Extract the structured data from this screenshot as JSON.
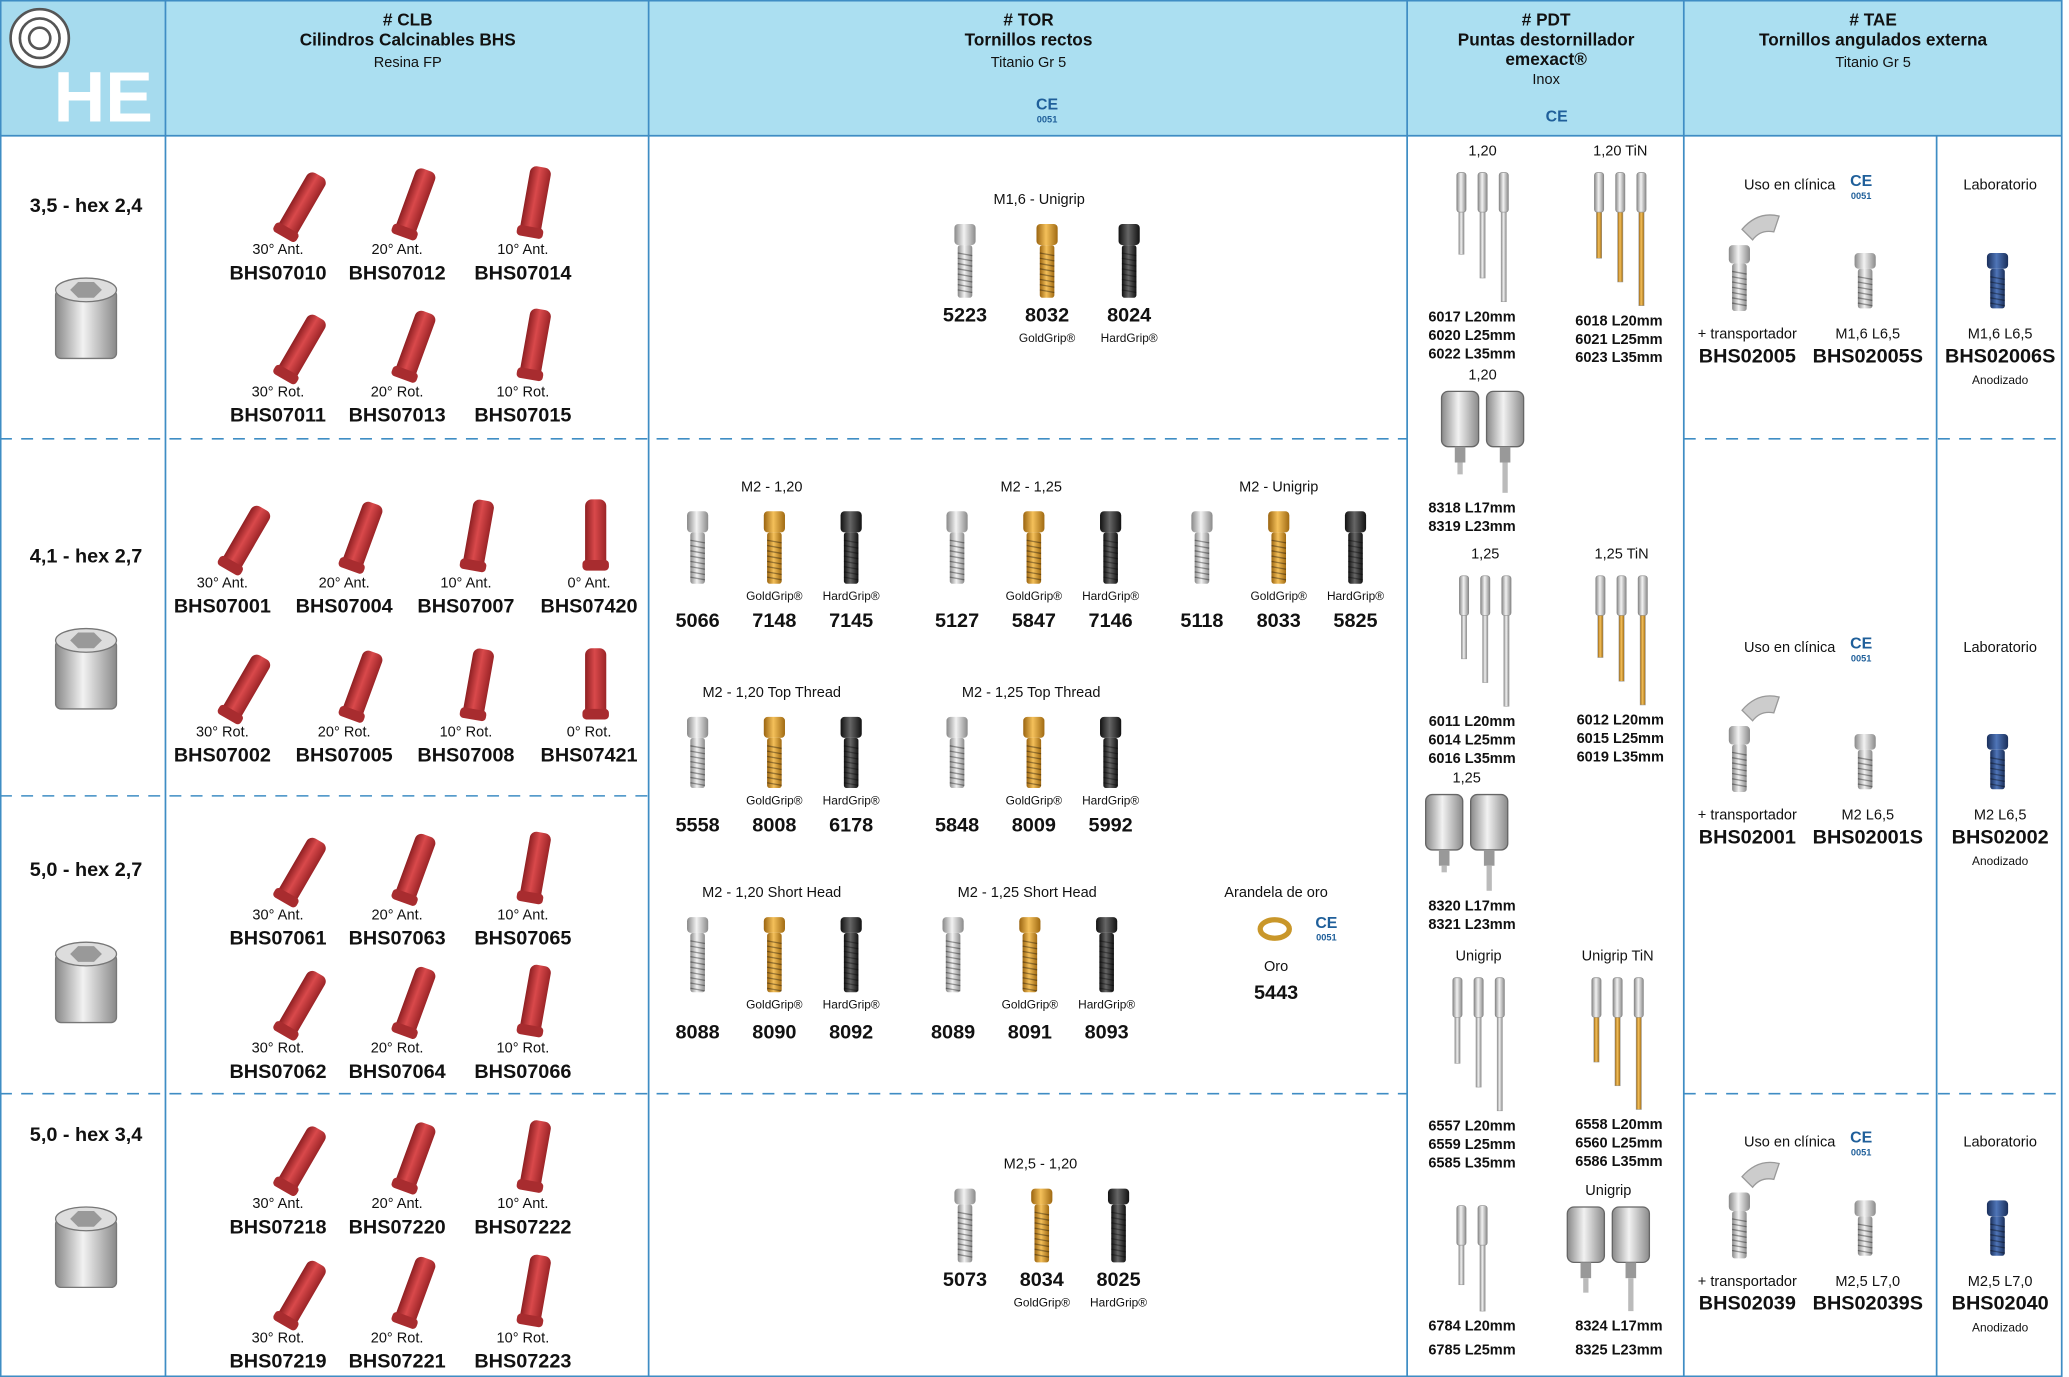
{
  "logo": "HE",
  "ce": {
    "mark": "CE",
    "number": "0051"
  },
  "header": {
    "clb": {
      "code": "# CLB",
      "title": "Cilindros Calcinables BHS",
      "material": "Resina FP"
    },
    "tor": {
      "code": "# TOR",
      "title": "Tornillos rectos",
      "material": "Titanio Gr 5"
    },
    "pdt": {
      "code": "# PDT",
      "title": "Puntas destornillador",
      "brand": "emexact®",
      "material": "Inox"
    },
    "tae": {
      "code": "# TAE",
      "title": "Tornillos angulados externa",
      "material": "Titanio Gr 5"
    }
  },
  "rows": [
    "3,5 - hex 2,4",
    "4,1 - hex 2,7",
    "5,0 - hex 2,7",
    "5,0 - hex 3,4"
  ],
  "clb": [
    [
      {
        "angle": "30° Ant.",
        "code": "BHS07010"
      },
      {
        "angle": "20° Ant.",
        "code": "BHS07012"
      },
      {
        "angle": "10° Ant.",
        "code": "BHS07014"
      },
      {
        "angle": "30° Rot.",
        "code": "BHS07011"
      },
      {
        "angle": "20° Rot.",
        "code": "BHS07013"
      },
      {
        "angle": "10° Rot.",
        "code": "BHS07015"
      }
    ],
    [
      {
        "angle": "30° Ant.",
        "code": "BHS07001"
      },
      {
        "angle": "20° Ant.",
        "code": "BHS07004"
      },
      {
        "angle": "10° Ant.",
        "code": "BHS07007"
      },
      {
        "angle": "0° Ant.",
        "code": "BHS07420"
      },
      {
        "angle": "30° Rot.",
        "code": "BHS07002"
      },
      {
        "angle": "20° Rot.",
        "code": "BHS07005"
      },
      {
        "angle": "10° Rot.",
        "code": "BHS07008"
      },
      {
        "angle": "0° Rot.",
        "code": "BHS07421"
      }
    ],
    [
      {
        "angle": "30° Ant.",
        "code": "BHS07061"
      },
      {
        "angle": "20° Ant.",
        "code": "BHS07063"
      },
      {
        "angle": "10° Ant.",
        "code": "BHS07065"
      },
      {
        "angle": "30° Rot.",
        "code": "BHS07062"
      },
      {
        "angle": "20° Rot.",
        "code": "BHS07064"
      },
      {
        "angle": "10° Rot.",
        "code": "BHS07066"
      }
    ],
    [
      {
        "angle": "30° Ant.",
        "code": "BHS07218"
      },
      {
        "angle": "20° Ant.",
        "code": "BHS07220"
      },
      {
        "angle": "10° Ant.",
        "code": "BHS07222"
      },
      {
        "angle": "30° Rot.",
        "code": "BHS07219"
      },
      {
        "angle": "20° Rot.",
        "code": "BHS07221"
      },
      {
        "angle": "10° Rot.",
        "code": "BHS07223"
      }
    ]
  ],
  "tor": [
    {
      "title": "M1,6 - Unigrip",
      "items": [
        {
          "code": "5223"
        },
        {
          "code": "8032",
          "grip": "GoldGrip®"
        },
        {
          "code": "8024",
          "grip": "HardGrip®"
        }
      ]
    },
    {
      "title": "M2 - 1,20",
      "items": [
        {
          "code": "5066"
        },
        {
          "code": "7148",
          "grip": "GoldGrip®"
        },
        {
          "code": "7145",
          "grip": "HardGrip®"
        }
      ]
    },
    {
      "title": "M2 - 1,25",
      "items": [
        {
          "code": "5127"
        },
        {
          "code": "5847",
          "grip": "GoldGrip®"
        },
        {
          "code": "7146",
          "grip": "HardGrip®"
        }
      ]
    },
    {
      "title": "M2 - Unigrip",
      "items": [
        {
          "code": "5118"
        },
        {
          "code": "8033",
          "grip": "GoldGrip®"
        },
        {
          "code": "5825",
          "grip": "HardGrip®"
        }
      ]
    },
    {
      "title": "M2 - 1,20 Top Thread",
      "items": [
        {
          "code": "5558"
        },
        {
          "code": "8008",
          "grip": "GoldGrip®"
        },
        {
          "code": "6178",
          "grip": "HardGrip®"
        }
      ]
    },
    {
      "title": "M2 - 1,25 Top Thread",
      "items": [
        {
          "code": "5848"
        },
        {
          "code": "8009",
          "grip": "GoldGrip®"
        },
        {
          "code": "5992",
          "grip": "HardGrip®"
        }
      ]
    },
    {
      "title": "M2 - 1,20 Short Head",
      "items": [
        {
          "code": "8088"
        },
        {
          "code": "8090",
          "grip": "GoldGrip®"
        },
        {
          "code": "8092",
          "grip": "HardGrip®"
        }
      ]
    },
    {
      "title": "M2 - 1,25 Short Head",
      "items": [
        {
          "code": "8089"
        },
        {
          "code": "8091",
          "grip": "GoldGrip®"
        },
        {
          "code": "8093",
          "grip": "HardGrip®"
        }
      ]
    },
    {
      "title": "M2,5 - 1,20",
      "items": [
        {
          "code": "5073"
        },
        {
          "code": "8034",
          "grip": "GoldGrip®"
        },
        {
          "code": "8025",
          "grip": "HardGrip®"
        }
      ]
    }
  ],
  "washer": {
    "title": "Arandela de oro",
    "material": "Oro",
    "code": "5443"
  },
  "pdt": [
    {
      "title": "1,20",
      "codes": [
        "6017 L20mm",
        "6020 L25mm",
        "6022 L35mm"
      ]
    },
    {
      "title": "1,20 TiN",
      "codes": [
        "6018 L20mm",
        "6021 L25mm",
        "6023 L35mm"
      ]
    },
    {
      "title": "1,20",
      "codes": [
        "8318 L17mm",
        "8319 L23mm"
      ]
    },
    {
      "title": "1,25",
      "codes": [
        "6011 L20mm",
        "6014 L25mm",
        "6016 L35mm"
      ]
    },
    {
      "title": "1,25 TiN",
      "codes": [
        "6012 L20mm",
        "6015 L25mm",
        "6019 L35mm"
      ]
    },
    {
      "title": "1,25",
      "codes": [
        "8320 L17mm",
        "8321 L23mm"
      ]
    },
    {
      "title": "Unigrip",
      "codes": [
        "6557 L20mm",
        "6559 L25mm",
        "6585 L35mm"
      ]
    },
    {
      "title": "Unigrip TiN",
      "codes": [
        "6558 L20mm",
        "6560 L25mm",
        "6586 L35mm"
      ]
    },
    {
      "codes": [
        "6784 L20mm",
        "6785 L25mm"
      ]
    },
    {
      "title": "Unigrip",
      "codes": [
        "8324 L17mm",
        "8325 L23mm"
      ]
    }
  ],
  "tae": [
    {
      "clinic": "Uso en clínica",
      "lab": "Laboratorio",
      "items": [
        {
          "label": "+ transportador",
          "code": "BHS02005"
        },
        {
          "label": "M1,6 L6,5",
          "code": "BHS02005S"
        },
        {
          "label": "M1,6 L6,5",
          "code": "BHS02006S",
          "finish": "Anodizado"
        }
      ]
    },
    {
      "clinic": "Uso en clínica",
      "lab": "Laboratorio",
      "items": [
        {
          "label": "+ transportador",
          "code": "BHS02001"
        },
        {
          "label": "M2 L6,5",
          "code": "BHS02001S"
        },
        {
          "label": "M2 L6,5",
          "code": "BHS02002",
          "finish": "Anodizado"
        }
      ]
    },
    {
      "clinic": "Uso en clínica",
      "lab": "Laboratorio",
      "items": [
        {
          "label": "+ transportador",
          "code": "BHS02039"
        },
        {
          "label": "M2,5 L7,0",
          "code": "BHS02039S"
        },
        {
          "label": "M2,5 L7,0",
          "code": "BHS02040",
          "finish": "Anodizado"
        }
      ]
    }
  ]
}
